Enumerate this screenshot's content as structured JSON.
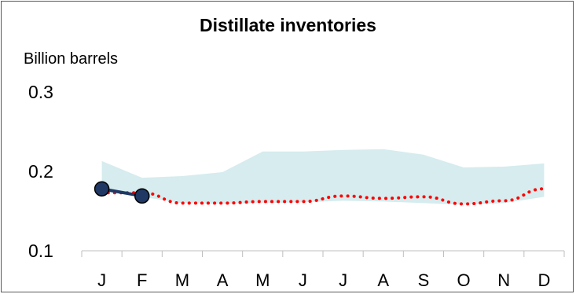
{
  "chart_data": {
    "type": "line",
    "title": "Distillate inventories",
    "ylabel": "Billion barrels",
    "xlabel": "",
    "categories": [
      "J",
      "F",
      "M",
      "A",
      "M",
      "J",
      "J",
      "A",
      "S",
      "O",
      "N",
      "D"
    ],
    "ylim": [
      0.1,
      0.3
    ],
    "yticks": [
      "0.1",
      "0.2",
      "0.3"
    ],
    "grid": false,
    "legend": "none",
    "band": {
      "lower": [
        0.175,
        0.168,
        0.16,
        0.159,
        0.16,
        0.161,
        0.163,
        0.162,
        0.16,
        0.158,
        0.16,
        0.168
      ],
      "upper": [
        0.213,
        0.192,
        0.194,
        0.199,
        0.225,
        0.225,
        0.227,
        0.228,
        0.221,
        0.205,
        0.206,
        0.21
      ],
      "color": "#d6ecee"
    },
    "series": [
      {
        "style": "dotted",
        "color": "#ff0000",
        "values": [
          0.173,
          0.173,
          0.16,
          0.16,
          0.162,
          0.162,
          0.169,
          0.166,
          0.168,
          0.159,
          0.163,
          0.178
        ]
      },
      {
        "style": "line-markers",
        "color": "#1f3864",
        "values": [
          0.178,
          0.169,
          null,
          null,
          null,
          null,
          null,
          null,
          null,
          null,
          null,
          null
        ]
      }
    ]
  }
}
